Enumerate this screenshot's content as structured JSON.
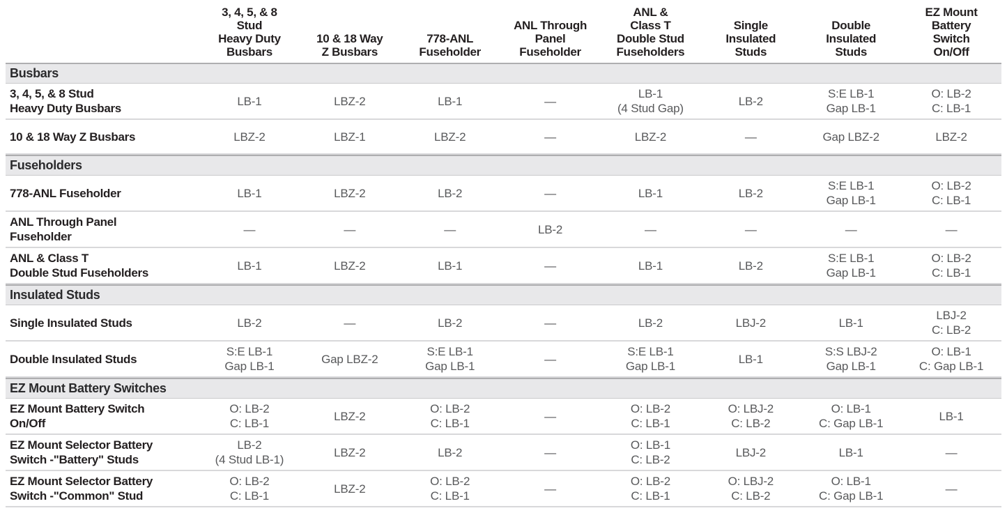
{
  "table": {
    "columns": [
      {
        "label": "3, 4, 5, & 8\nStud\nHeavy Duty\nBusbars"
      },
      {
        "label": "10 & 18 Way\nZ Busbars"
      },
      {
        "label": "778-ANL\nFuseholder"
      },
      {
        "label": "ANL Through\nPanel\nFuseholder"
      },
      {
        "label": "ANL &\nClass T\nDouble Stud\nFuseholders"
      },
      {
        "label": "Single\nInsulated\nStuds"
      },
      {
        "label": "Double\nInsulated\nStuds"
      },
      {
        "label": "EZ Mount\nBattery\nSwitch\nOn/Off"
      }
    ],
    "sections": [
      {
        "title": "Busbars",
        "rows": [
          {
            "label": "3, 4, 5, & 8 Stud\nHeavy Duty Busbars",
            "cells": [
              "LB-1",
              "LBZ-2",
              "LB-1",
              "—",
              "LB-1\n(4 Stud Gap)",
              "LB-2",
              "S:E LB-1\nGap LB-1",
              "O: LB-2\nC: LB-1"
            ]
          },
          {
            "label": "10 & 18 Way Z Busbars",
            "cells": [
              "LBZ-2",
              "LBZ-1",
              "LBZ-2",
              "—",
              "LBZ-2",
              "—",
              "Gap LBZ-2",
              "LBZ-2"
            ]
          }
        ]
      },
      {
        "title": "Fuseholders",
        "rows": [
          {
            "label": "778-ANL Fuseholder",
            "cells": [
              "LB-1",
              "LBZ-2",
              "LB-2",
              "—",
              "LB-1",
              "LB-2",
              "S:E LB-1\nGap LB-1",
              "O: LB-2\nC: LB-1"
            ]
          },
          {
            "label": "ANL Through Panel\nFuseholder",
            "cells": [
              "—",
              "—",
              "—",
              "LB-2",
              "—",
              "—",
              "—",
              "—"
            ]
          },
          {
            "label": "ANL & Class T\nDouble Stud Fuseholders",
            "cells": [
              "LB-1",
              "LBZ-2",
              "LB-1",
              "—",
              "LB-1",
              "LB-2",
              "S:E LB-1\nGap LB-1",
              "O: LB-2\nC: LB-1"
            ]
          }
        ]
      },
      {
        "title": "Insulated Studs",
        "rows": [
          {
            "label": "Single Insulated Studs",
            "cells": [
              "LB-2",
              "—",
              "LB-2",
              "—",
              "LB-2",
              "LBJ-2",
              "LB-1",
              "LBJ-2\nC: LB-2"
            ]
          },
          {
            "label": "Double Insulated Studs",
            "cells": [
              "S:E LB-1\nGap LB-1",
              "Gap LBZ-2",
              "S:E LB-1\nGap LB-1",
              "—",
              "S:E LB-1\nGap LB-1",
              "LB-1",
              "S:S LBJ-2\nGap LB-1",
              "O: LB-1\nC: Gap LB-1"
            ]
          }
        ]
      },
      {
        "title": "EZ Mount Battery Switches",
        "rows": [
          {
            "label": "EZ Mount Battery Switch\nOn/Off",
            "cells": [
              "O: LB-2\nC: LB-1",
              "LBZ-2",
              "O: LB-2\nC: LB-1",
              "—",
              "O: LB-2\nC: LB-1",
              "O: LBJ-2\nC: LB-2",
              "O: LB-1\nC: Gap LB-1",
              "LB-1"
            ]
          },
          {
            "label": "EZ Mount Selector Battery\nSwitch -\"Battery\" Studs",
            "cells": [
              "LB-2\n(4 Stud LB-1)",
              "LBZ-2",
              "LB-2",
              "—",
              "O: LB-1\nC: LB-2",
              "LBJ-2",
              "LB-1",
              "—"
            ]
          },
          {
            "label": "EZ Mount Selector Battery\nSwitch -\"Common\" Stud",
            "cells": [
              "O: LB-2\nC: LB-1",
              "LBZ-2",
              "O: LB-2\nC: LB-1",
              "—",
              "O: LB-2\nC: LB-1",
              "O: LBJ-2\nC: LB-2",
              "O: LB-1\nC: Gap LB-1",
              "—"
            ]
          }
        ]
      }
    ]
  },
  "empty_cell_symbol": "—",
  "colors": {
    "section_bar_background": "#e8e8ea",
    "section_bar_top_border": "#aeaeb0",
    "row_divider": "#d8d8da",
    "row_label_text": "#231f20",
    "cell_value_text": "#58595b"
  }
}
